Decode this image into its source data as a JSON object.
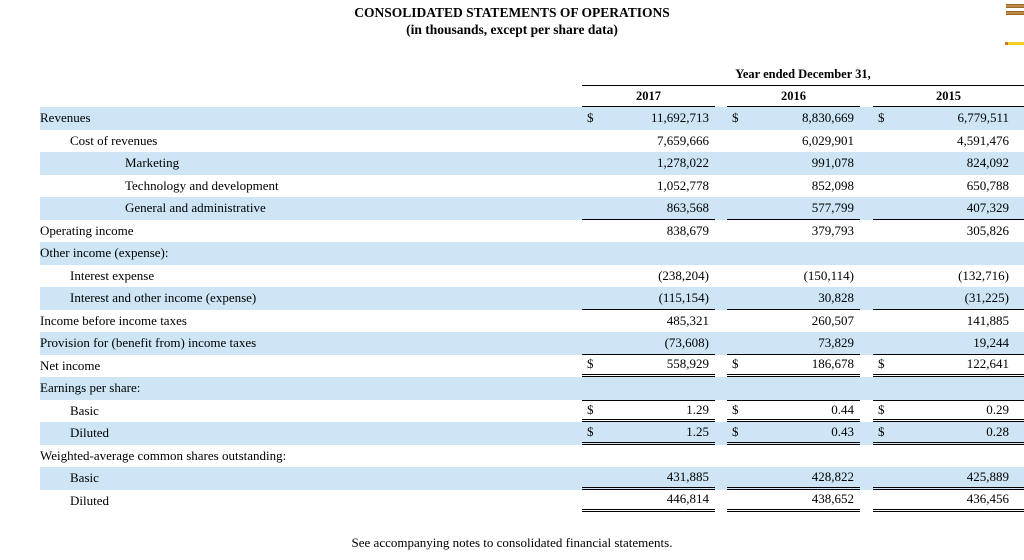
{
  "title": {
    "line1": "CONSOLIDATED STATEMENTS OF OPERATIONS",
    "line2": "(in thousands, except per share data)"
  },
  "table": {
    "period_header": "Year ended December 31,",
    "columns": [
      "2017",
      "2016",
      "2015"
    ],
    "currency_symbol": "$",
    "rows": [
      {
        "label": "Revenues",
        "indent": 0,
        "shaded": true,
        "dollar": true,
        "values": [
          "11,692,713",
          "8,830,669",
          "6,779,511"
        ],
        "rule_top": "none",
        "rule_bottom": "none"
      },
      {
        "label": "Cost of revenues",
        "indent": 1,
        "shaded": false,
        "dollar": false,
        "values": [
          "7,659,666",
          "6,029,901",
          "4,591,476"
        ],
        "rule_top": "none",
        "rule_bottom": "none"
      },
      {
        "label": "Marketing",
        "indent": 2,
        "shaded": true,
        "dollar": false,
        "values": [
          "1,278,022",
          "991,078",
          "824,092"
        ],
        "rule_top": "none",
        "rule_bottom": "none"
      },
      {
        "label": "Technology and development",
        "indent": 2,
        "shaded": false,
        "dollar": false,
        "values": [
          "1,052,778",
          "852,098",
          "650,788"
        ],
        "rule_top": "none",
        "rule_bottom": "none"
      },
      {
        "label": "General and administrative",
        "indent": 2,
        "shaded": true,
        "dollar": false,
        "values": [
          "863,568",
          "577,799",
          "407,329"
        ],
        "rule_top": "none",
        "rule_bottom": "single"
      },
      {
        "label": "Operating income",
        "indent": 0,
        "shaded": false,
        "dollar": false,
        "values": [
          "838,679",
          "379,793",
          "305,826"
        ],
        "rule_top": "none",
        "rule_bottom": "none"
      },
      {
        "label": "Other income (expense):",
        "indent": 0,
        "shaded": true,
        "dollar": false,
        "values": [
          "",
          "",
          ""
        ],
        "rule_top": "none",
        "rule_bottom": "none"
      },
      {
        "label": "Interest expense",
        "indent": 1,
        "shaded": false,
        "dollar": false,
        "values": [
          "(238,204)",
          "(150,114)",
          "(132,716)"
        ],
        "rule_top": "none",
        "rule_bottom": "none"
      },
      {
        "label": "Interest and other income (expense)",
        "indent": 1,
        "shaded": true,
        "dollar": false,
        "values": [
          "(115,154)",
          "30,828",
          "(31,225)"
        ],
        "rule_top": "none",
        "rule_bottom": "single"
      },
      {
        "label": "Income before income taxes",
        "indent": 0,
        "shaded": false,
        "dollar": false,
        "values": [
          "485,321",
          "260,507",
          "141,885"
        ],
        "rule_top": "none",
        "rule_bottom": "none"
      },
      {
        "label": "Provision for (benefit from) income taxes",
        "indent": 0,
        "shaded": true,
        "dollar": false,
        "values": [
          "(73,608)",
          "73,829",
          "19,244"
        ],
        "rule_top": "none",
        "rule_bottom": "single"
      },
      {
        "label": "Net income",
        "indent": 0,
        "shaded": false,
        "dollar": true,
        "values": [
          "558,929",
          "186,678",
          "122,641"
        ],
        "rule_top": "none",
        "rule_bottom": "double"
      },
      {
        "label": "Earnings per share:",
        "indent": 0,
        "shaded": true,
        "dollar": false,
        "values": [
          "",
          "",
          ""
        ],
        "rule_top": "none",
        "rule_bottom": "none"
      },
      {
        "label": "Basic",
        "indent": 1,
        "shaded": false,
        "dollar": true,
        "values": [
          "1.29",
          "0.44",
          "0.29"
        ],
        "rule_top": "single",
        "rule_bottom": "double"
      },
      {
        "label": "Diluted",
        "indent": 1,
        "shaded": true,
        "dollar": true,
        "values": [
          "1.25",
          "0.43",
          "0.28"
        ],
        "rule_top": "none",
        "rule_bottom": "double"
      },
      {
        "label": "Weighted-average common shares outstanding:",
        "indent": 0,
        "shaded": false,
        "dollar": false,
        "values": [
          "",
          "",
          ""
        ],
        "rule_top": "none",
        "rule_bottom": "none"
      },
      {
        "label": "Basic",
        "indent": 1,
        "shaded": true,
        "dollar": false,
        "values": [
          "431,885",
          "428,822",
          "425,889"
        ],
        "rule_top": "none",
        "rule_bottom": "double"
      },
      {
        "label": "Diluted",
        "indent": 1,
        "shaded": false,
        "dollar": false,
        "values": [
          "446,814",
          "438,652",
          "436,456"
        ],
        "rule_top": "none",
        "rule_bottom": "double"
      }
    ]
  },
  "footer": "See accompanying notes to consolidated financial statements.",
  "colors": {
    "row_shade": "#cde5f5",
    "rule": "#000000",
    "deco_bar_brown": "#a9752f",
    "deco_highlight_yellow": "#f2d024",
    "deco_highlight_dot_orange": "#c9752c"
  }
}
